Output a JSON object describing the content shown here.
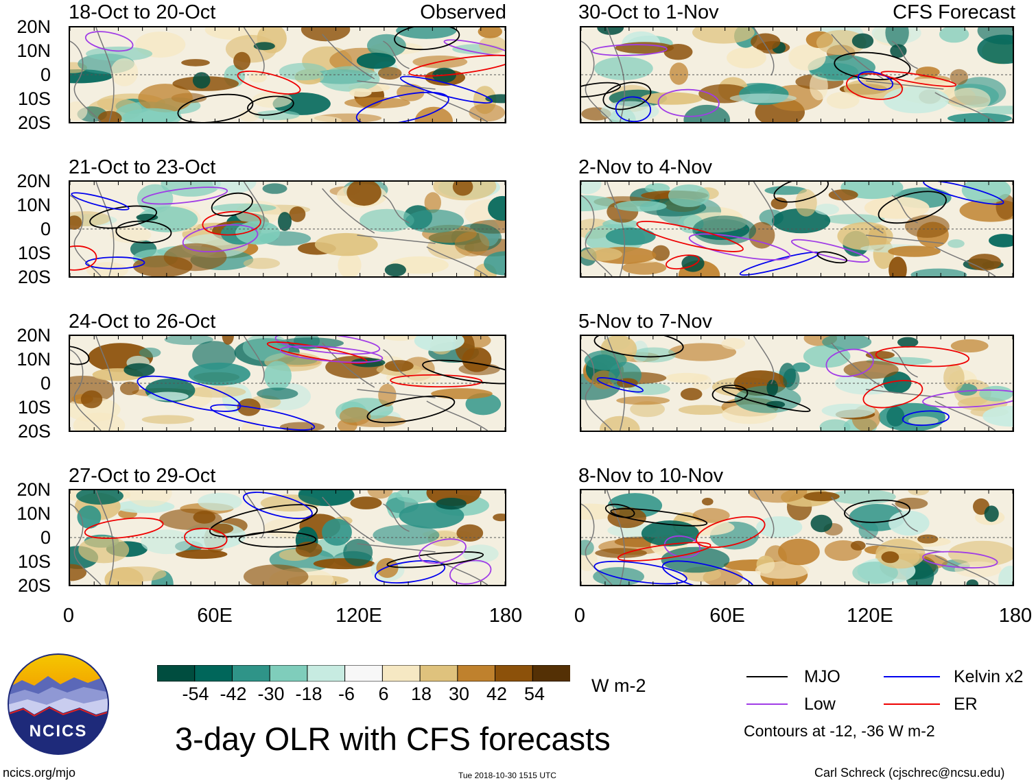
{
  "panels": {
    "observed": [
      {
        "period": "18-Oct to 20-Oct",
        "tag": "Observed"
      },
      {
        "period": "21-Oct to 23-Oct"
      },
      {
        "period": "24-Oct to 26-Oct"
      },
      {
        "period": "27-Oct to 29-Oct"
      }
    ],
    "forecast": [
      {
        "period": "30-Oct to 1-Nov",
        "tag": "CFS Forecast"
      },
      {
        "period": "2-Nov to 4-Nov"
      },
      {
        "period": "5-Nov to 7-Nov"
      },
      {
        "period": "8-Nov to 10-Nov"
      }
    ]
  },
  "axes": {
    "lat_labels": [
      "20N",
      "10N",
      "0",
      "10S",
      "20S"
    ],
    "lon_labels": [
      "0",
      "60E",
      "120E",
      "180"
    ]
  },
  "colorbar": {
    "ticks": [
      "-54",
      "-42",
      "-30",
      "-18",
      "-6",
      "6",
      "18",
      "30",
      "42",
      "54"
    ],
    "units": "W m-2",
    "colors": [
      "#004d3f",
      "#00665a",
      "#2f9488",
      "#7fcdbb",
      "#c7ebe1",
      "#f7f7f7",
      "#f6e8c3",
      "#dfc27d",
      "#bf812d",
      "#8c510a",
      "#543005"
    ]
  },
  "legend": {
    "items": [
      {
        "label": "MJO",
        "color": "#000000"
      },
      {
        "label": "Kelvin x2",
        "color": "#0000ee"
      },
      {
        "label": "Low",
        "color": "#a03ce6"
      },
      {
        "label": "ER",
        "color": "#ee0000"
      }
    ],
    "note": "Contours at -12, -36 W m-2"
  },
  "title": "3-day OLR with CFS forecasts",
  "logo_text": "NCICS",
  "footer": {
    "left": "ncics.org/mjo",
    "center": "Tue 2018-10-30 1515 UTC",
    "right": "Carl Schreck (cjschrec@ncsu.edu)"
  }
}
